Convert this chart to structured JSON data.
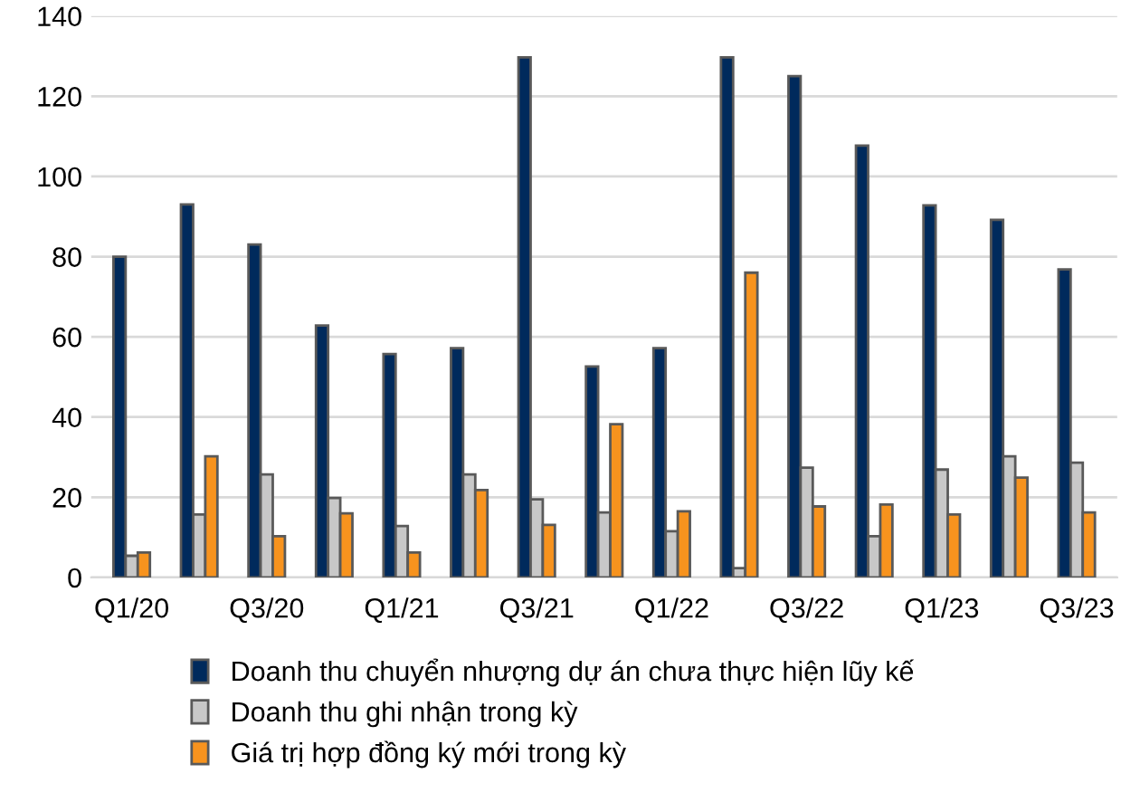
{
  "chart_data": {
    "type": "bar",
    "categories": [
      "Q1/20",
      null,
      "Q3/20",
      null,
      "Q1/21",
      null,
      "Q3/21",
      null,
      "Q1/22",
      null,
      "Q3/22",
      null,
      "Q1/23",
      null,
      "Q3/23"
    ],
    "series": [
      {
        "name": "Doanh thu chuyển nhượng dự án chưa thực hiện lũy kế",
        "color": "#002a5c",
        "values": [
          80,
          93,
          83,
          62.8,
          55.7,
          57.2,
          129.7,
          52.6,
          57.2,
          129.7,
          125,
          107.7,
          92.8,
          89.2,
          76.8
        ]
      },
      {
        "name": "Doanh thu ghi nhận trong kỳ",
        "color": "#c8c8c8",
        "values": [
          5.4,
          15.7,
          25.7,
          19.8,
          12.8,
          25.7,
          19.5,
          16.2,
          11.5,
          2.3,
          27.4,
          10.3,
          26.9,
          30.2,
          28.6
        ]
      },
      {
        "name": "Giá trị hợp đồng ký mới trong kỳ",
        "color": "#f7931e",
        "values": [
          6.2,
          30.2,
          10.3,
          16,
          6.2,
          21.8,
          13.1,
          38.2,
          16.5,
          76,
          17.7,
          18.2,
          15.7,
          24.9,
          16.2
        ]
      }
    ],
    "ylim": [
      0,
      140
    ],
    "yticks": [
      0,
      20,
      40,
      60,
      80,
      100,
      120,
      140
    ],
    "grid": "y",
    "legend": "bottom"
  }
}
